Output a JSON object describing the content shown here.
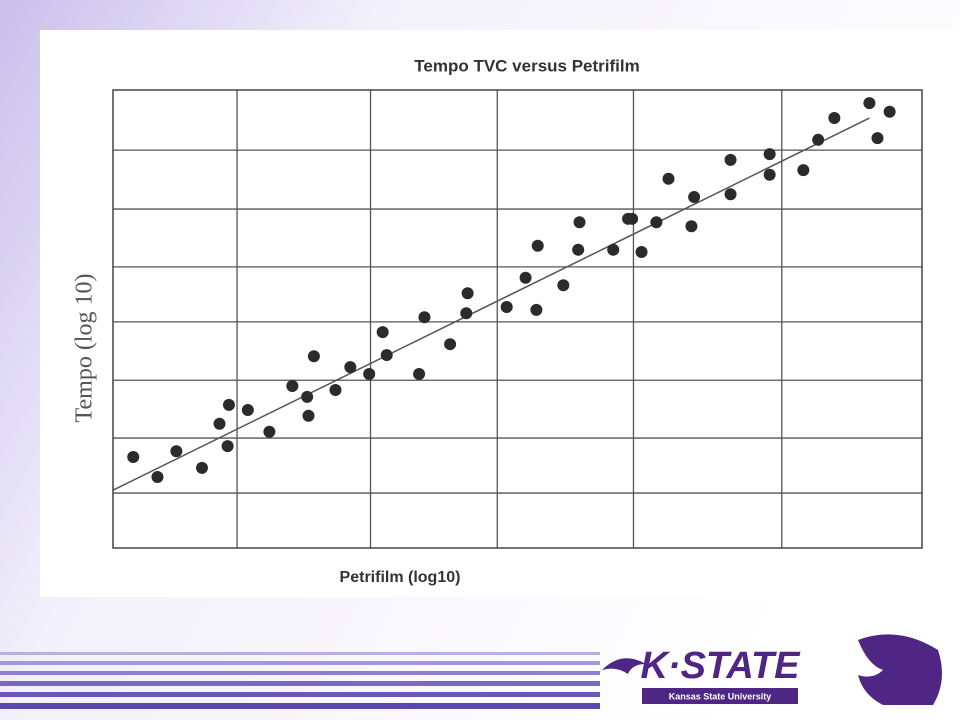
{
  "chart_data": {
    "type": "scatter",
    "title": "Tempo TVC versus Petrifilm",
    "x_label": "Petrifilm (log10)",
    "y_label": "Tempo (log 10)",
    "xlim": [
      0,
      6
    ],
    "ylim": [
      0,
      8
    ],
    "xticks": [
      0.92,
      1.91,
      2.85,
      3.86,
      4.96
    ],
    "yticks": [
      0.96,
      1.92,
      2.93,
      3.95,
      4.91,
      5.92,
      6.95
    ],
    "grid": true,
    "color": "#2b2b2b",
    "x": [
      0.15,
      0.33,
      0.47,
      0.66,
      0.79,
      0.86,
      0.85,
      1.0,
      1.16,
      1.33,
      1.44,
      1.45,
      1.49,
      1.65,
      1.76,
      1.9,
      2.0,
      2.03,
      2.27,
      2.31,
      2.5,
      2.62,
      2.63,
      2.92,
      3.06,
      3.14,
      3.15,
      3.34,
      3.45,
      3.46,
      3.71,
      3.82,
      3.85,
      3.92,
      4.03,
      4.12,
      4.29,
      4.31,
      4.58,
      4.58,
      4.87,
      4.87,
      5.12,
      5.23,
      5.35,
      5.61,
      5.67,
      5.76
    ],
    "values": [
      1.59,
      1.24,
      1.69,
      1.4,
      2.17,
      2.5,
      1.78,
      2.41,
      2.03,
      2.83,
      2.64,
      2.31,
      3.35,
      2.76,
      3.16,
      3.04,
      3.77,
      3.37,
      3.04,
      4.03,
      3.56,
      4.1,
      4.45,
      4.21,
      4.72,
      4.16,
      5.28,
      4.59,
      5.21,
      5.69,
      5.21,
      5.75,
      5.75,
      5.17,
      5.69,
      6.45,
      5.62,
      6.13,
      6.78,
      6.18,
      6.88,
      6.52,
      6.6,
      7.13,
      7.51,
      7.77,
      7.16,
      7.62
    ],
    "trend_line": {
      "x": [
        0,
        5.61
      ],
      "y": [
        1.01,
        7.51
      ],
      "color": "#555555"
    }
  },
  "logo": {
    "wordmark": "K·STATE",
    "subtitle": "Kansas State University"
  }
}
